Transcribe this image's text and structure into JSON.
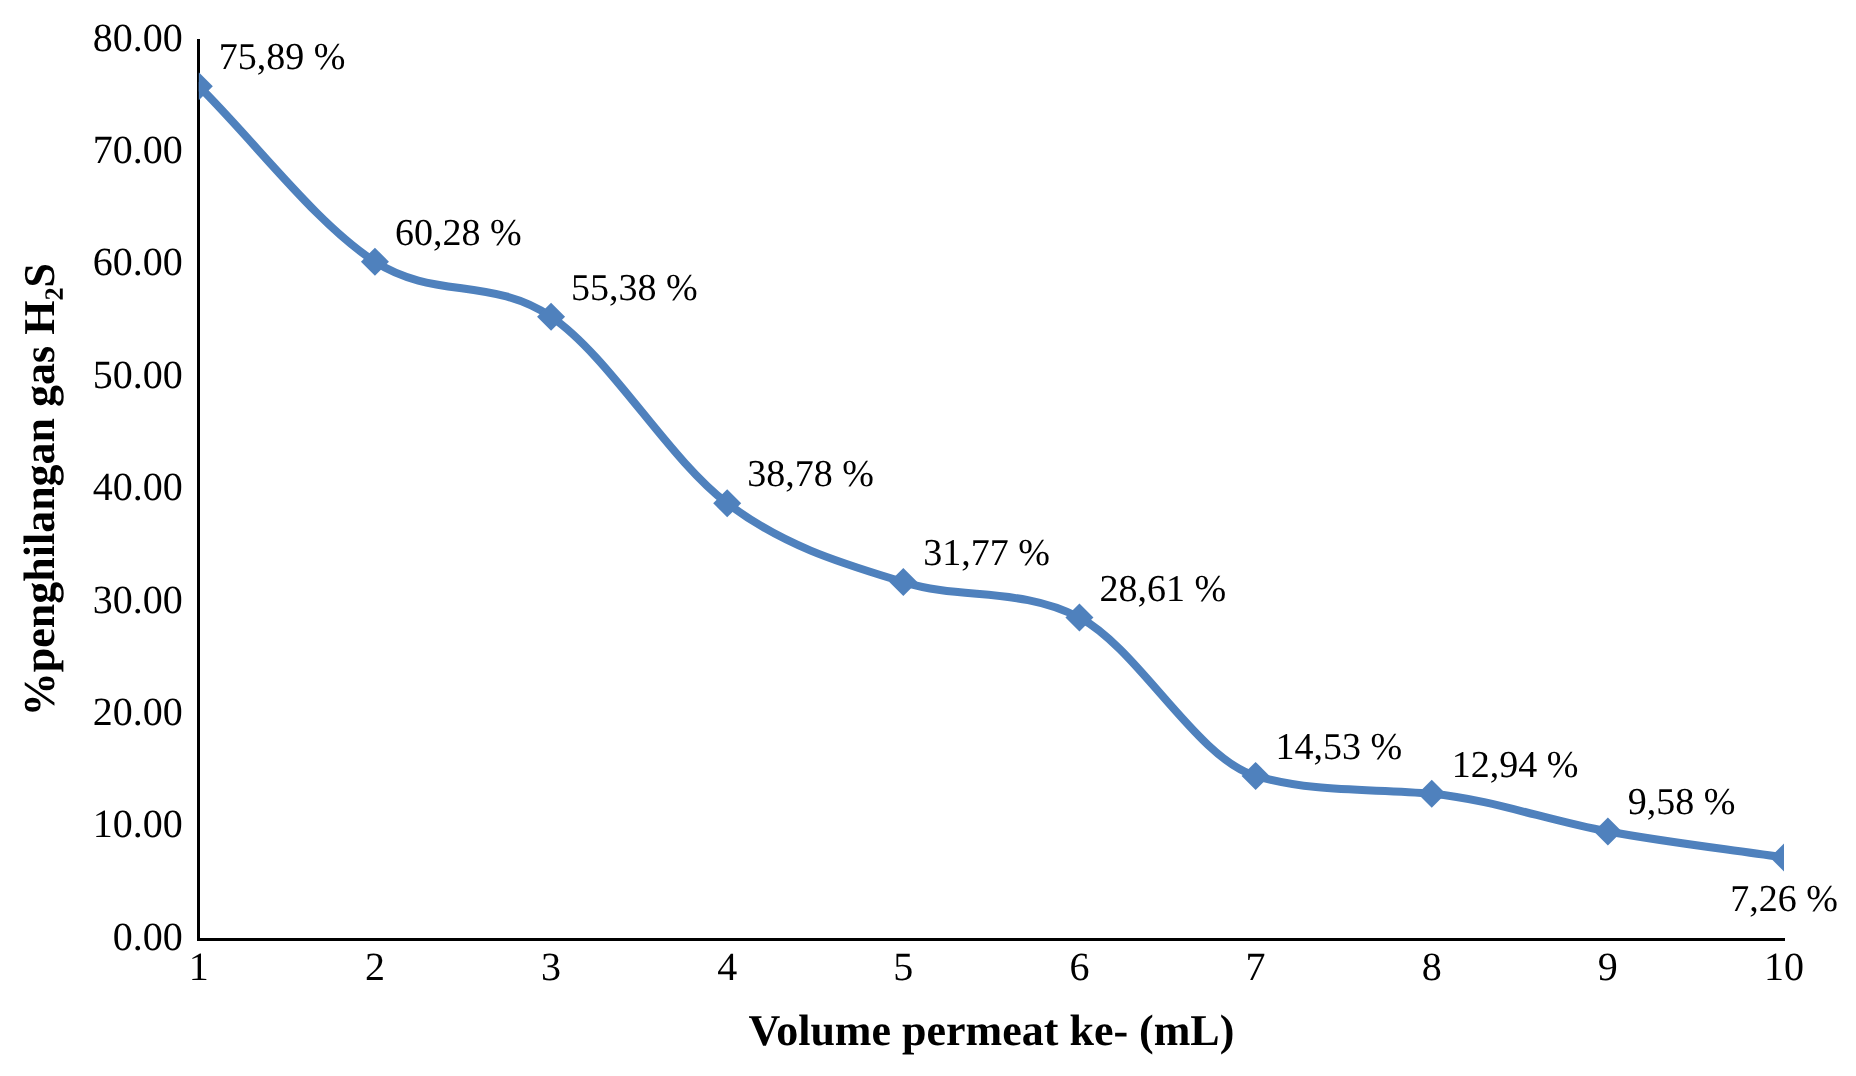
{
  "chart_data": {
    "type": "line",
    "xlabel": "Volume permeat ke- (mL)",
    "ylabel": "%penghilangan gas H₂S",
    "x": [
      1,
      2,
      3,
      4,
      5,
      6,
      7,
      8,
      9,
      10
    ],
    "series": [
      {
        "color": "#4f81bd",
        "values": [
          75.89,
          60.28,
          55.38,
          38.78,
          31.77,
          28.61,
          14.53,
          12.94,
          9.58,
          7.26
        ],
        "value_labels": [
          "75,89 %",
          "60,28 %",
          "55,38 %",
          "38,78 %",
          "31,77 %",
          "28,61 %",
          "14,53 %",
          "12,94 %",
          "9,58 %",
          "7,26 %"
        ]
      }
    ],
    "xlim": [
      1,
      10
    ],
    "xticks": [
      1,
      2,
      3,
      4,
      5,
      6,
      7,
      8,
      9,
      10
    ],
    "ylim": [
      0,
      80
    ],
    "yticks": [
      {
        "value": 0,
        "label": "0.00"
      },
      {
        "value": 10,
        "label": "10.00"
      },
      {
        "value": 20,
        "label": "20.00"
      },
      {
        "value": 30,
        "label": "30.00"
      },
      {
        "value": 40,
        "label": "40.00"
      },
      {
        "value": 50,
        "label": "50.00"
      },
      {
        "value": 60,
        "label": "60.00"
      },
      {
        "value": 70,
        "label": "70.00"
      },
      {
        "value": 80,
        "label": "80.00"
      }
    ],
    "grid": false,
    "legend": false,
    "marker": "diamond",
    "line_style": "solid"
  }
}
